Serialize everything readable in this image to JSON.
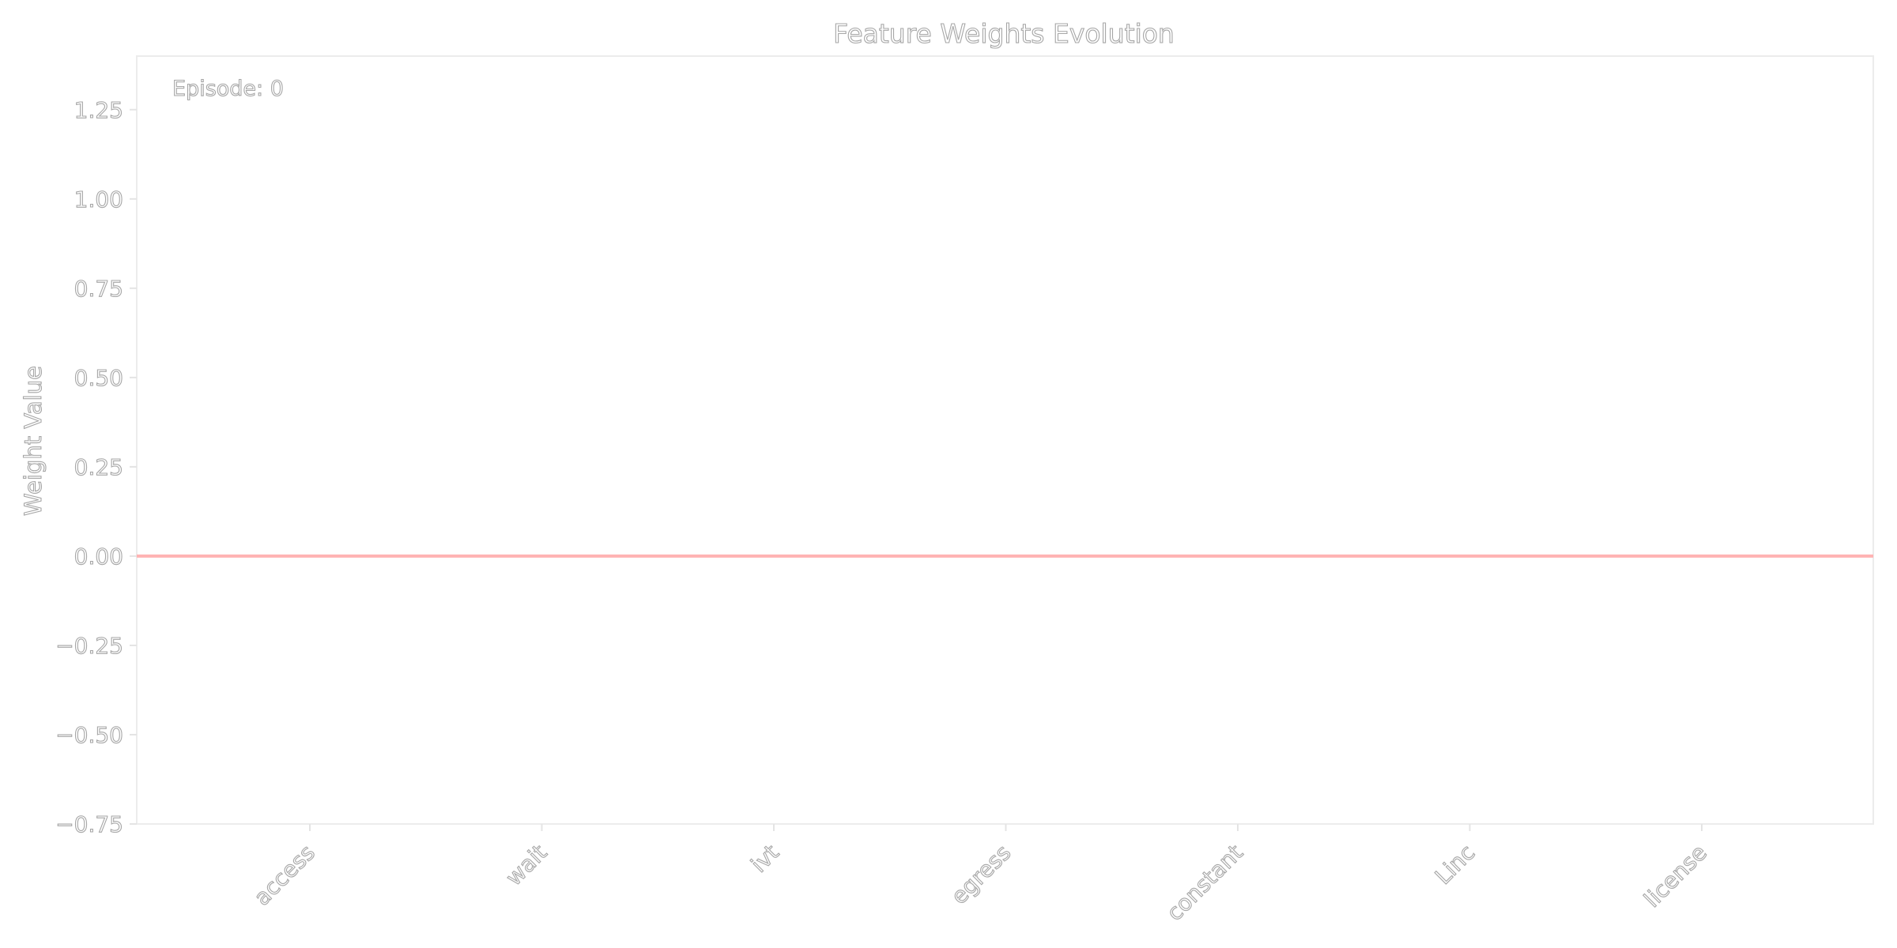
{
  "chart_data": {
    "type": "line",
    "title": "Feature Weights Evolution",
    "xlabel": "",
    "ylabel": "Weight Value",
    "categories": [
      "access",
      "wait",
      "ivt",
      "egress",
      "constant",
      "Linc",
      "license"
    ],
    "series": [
      {
        "values": [
          0,
          0,
          0,
          0,
          0,
          0,
          0
        ],
        "color": "#ffb3b3"
      }
    ],
    "ylim": [
      -0.75,
      1.4
    ],
    "yticks": [
      -0.75,
      -0.5,
      -0.25,
      0.0,
      0.25,
      0.5,
      0.75,
      1.0,
      1.25
    ],
    "ytick_labels": [
      "−0.75",
      "−0.50",
      "−0.25",
      "0.00",
      "0.25",
      "0.50",
      "0.75",
      "1.00",
      "1.25"
    ],
    "annotation": "Episode: 0",
    "grid": false,
    "legend": "none"
  }
}
